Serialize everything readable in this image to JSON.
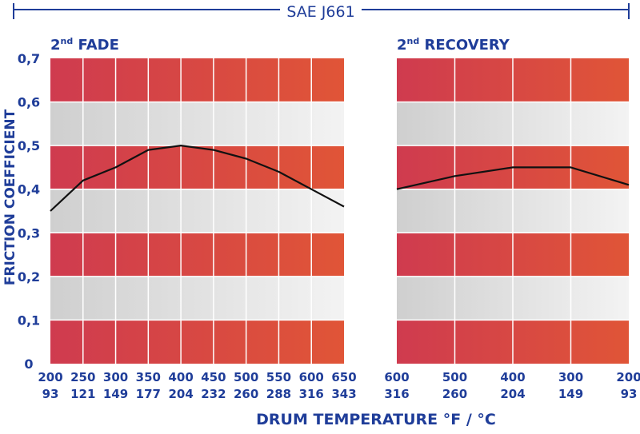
{
  "header": {
    "title": "SAE J661"
  },
  "axis": {
    "ylabel": "FRICTION COEFFICIENT",
    "xlabel": "DRUM TEMPERATURE °F / °C",
    "yticks": [
      "0,7",
      "0,6",
      "0,5",
      "0,4",
      "0,3",
      "0,2",
      "0,1",
      "0"
    ]
  },
  "colors": {
    "brand_blue": "#1f3d99",
    "band_red_start": "#cf3b4f",
    "band_red_end": "#e05537",
    "band_gray_start": "#cfcfcf",
    "band_gray_end": "#f3f3f3",
    "line": "#111111"
  },
  "chart_data": [
    {
      "type": "line",
      "title_main": "2",
      "title_sup": "nd",
      "title_rest": " FADE",
      "xlabel": "DRUM TEMPERATURE °F / °C",
      "ylabel": "FRICTION COEFFICIENT",
      "ylim": [
        0,
        0.7
      ],
      "x_f": [
        "200",
        "250",
        "300",
        "350",
        "400",
        "450",
        "500",
        "550",
        "600",
        "650"
      ],
      "x_c": [
        "93",
        "121",
        "149",
        "177",
        "204",
        "232",
        "260",
        "288",
        "316",
        "343"
      ],
      "y": [
        0.35,
        0.42,
        0.45,
        0.49,
        0.5,
        0.49,
        0.47,
        0.44,
        0.4,
        0.36
      ]
    },
    {
      "type": "line",
      "title_main": "2",
      "title_sup": "nd",
      "title_rest": " RECOVERY",
      "xlabel": "DRUM TEMPERATURE °F / °C",
      "ylabel": "FRICTION COEFFICIENT",
      "ylim": [
        0,
        0.7
      ],
      "x_f": [
        "600",
        "500",
        "400",
        "300",
        "200"
      ],
      "x_c": [
        "316",
        "260",
        "204",
        "149",
        "93"
      ],
      "y": [
        0.4,
        0.43,
        0.45,
        0.45,
        0.41
      ]
    }
  ]
}
